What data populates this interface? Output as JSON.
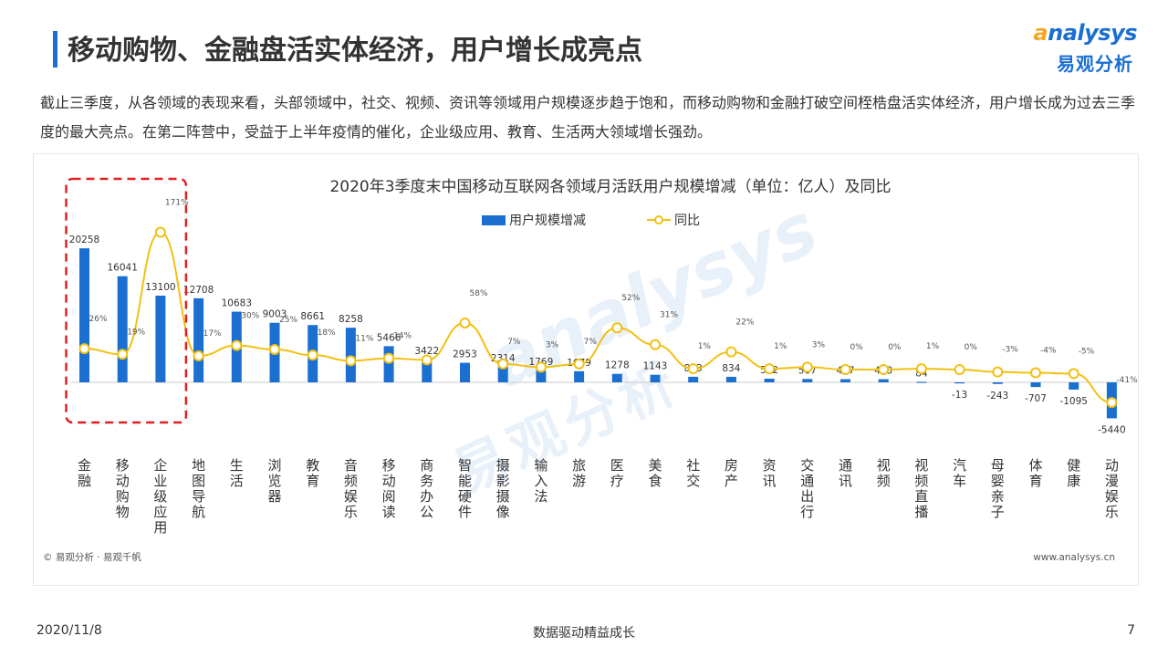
{
  "header": {
    "title": "移动购物、金融盘活实体经济，用户增长成亮点",
    "logo_en_lead": "a",
    "logo_en_rest": "nalysys",
    "logo_cn": "易观分析"
  },
  "intro": "截止三季度，从各领域的表现来看，头部领域中，社交、视频、资讯等领域用户规模逐步趋于饱和，而移动购物和金融打破空间桎梏盘活实体经济，用户增长成为过去三季度的最大亮点。在第二阵营中，受益于上半年疫情的催化，企业级应用、教育、生活两大领域增长强劲。",
  "chart_data": {
    "type": "bar+line",
    "title": "2020年3季度末中国移动互联网各领域月活跃用户规模增减（单位：亿人）及同比",
    "categories": [
      "金融",
      "移动购物",
      "企业级应用",
      "地图导航",
      "生活",
      "浏览器",
      "教育",
      "音频娱乐",
      "移动阅读",
      "商务办公",
      "智能硬件",
      "摄影摄像",
      "输入法",
      "旅游",
      "医疗",
      "美食",
      "社交",
      "房产",
      "资讯",
      "交通出行",
      "通讯",
      "视频",
      "视频直播",
      "汽车",
      "母婴亲子",
      "体育",
      "健康",
      "动漫娱乐"
    ],
    "series": [
      {
        "name": "用户规模增减",
        "kind": "bar",
        "values": [
          20258,
          16041,
          13100,
          12708,
          10683,
          9003,
          8661,
          8258,
          5466,
          3422,
          2953,
          2314,
          1769,
          1679,
          1278,
          1143,
          843,
          834,
          552,
          507,
          477,
          473,
          84,
          -13,
          -243,
          -707,
          -1095,
          -5440
        ],
        "labels": [
          "20258",
          "16041",
          "13100",
          "12708",
          "10683",
          "9003",
          "8661",
          "8258",
          "5466",
          "3422",
          "2953",
          "2314",
          "1769",
          "1679",
          "1278",
          "1143",
          "843",
          "834",
          "552",
          "507",
          "477",
          "473",
          "84",
          "-13",
          "-243",
          "-707",
          "-1095",
          "-5440"
        ]
      },
      {
        "name": "同比",
        "kind": "line",
        "values": [
          26,
          19,
          171,
          17,
          30,
          25,
          18,
          11,
          14,
          12,
          58,
          7,
          3,
          7,
          52,
          31,
          1,
          22,
          1,
          3,
          0,
          0,
          1,
          0,
          -3,
          -4,
          -5,
          -41
        ],
        "labels": [
          "26%",
          "19%",
          "171%",
          "17%",
          "30%",
          "25%",
          "18%",
          "11%",
          "14%",
          "",
          "58%",
          "7%",
          "3%",
          "7%",
          "52%",
          "31%",
          "1%",
          "22%",
          "1%",
          "3%",
          "0%",
          "0%",
          "1%",
          "0%",
          "-3%",
          "-4%",
          "-5%",
          "-41%"
        ]
      }
    ],
    "legend_position": "top",
    "highlight_group": [
      0,
      2
    ],
    "colors": {
      "bar": "#1a6fd1",
      "line": "#f2c012",
      "highlight": "#e02020",
      "axis": "#cccccc",
      "watermark": "#dfeaf7"
    },
    "watermark": {
      "en": "analysys",
      "cn": "易观分析"
    },
    "source_left": "© 易观分析 · 易观千帆",
    "source_right": "www.analysys.cn"
  },
  "footer": {
    "date": "2020/11/8",
    "slogan": "数据驱动精益成长",
    "page": "7"
  }
}
